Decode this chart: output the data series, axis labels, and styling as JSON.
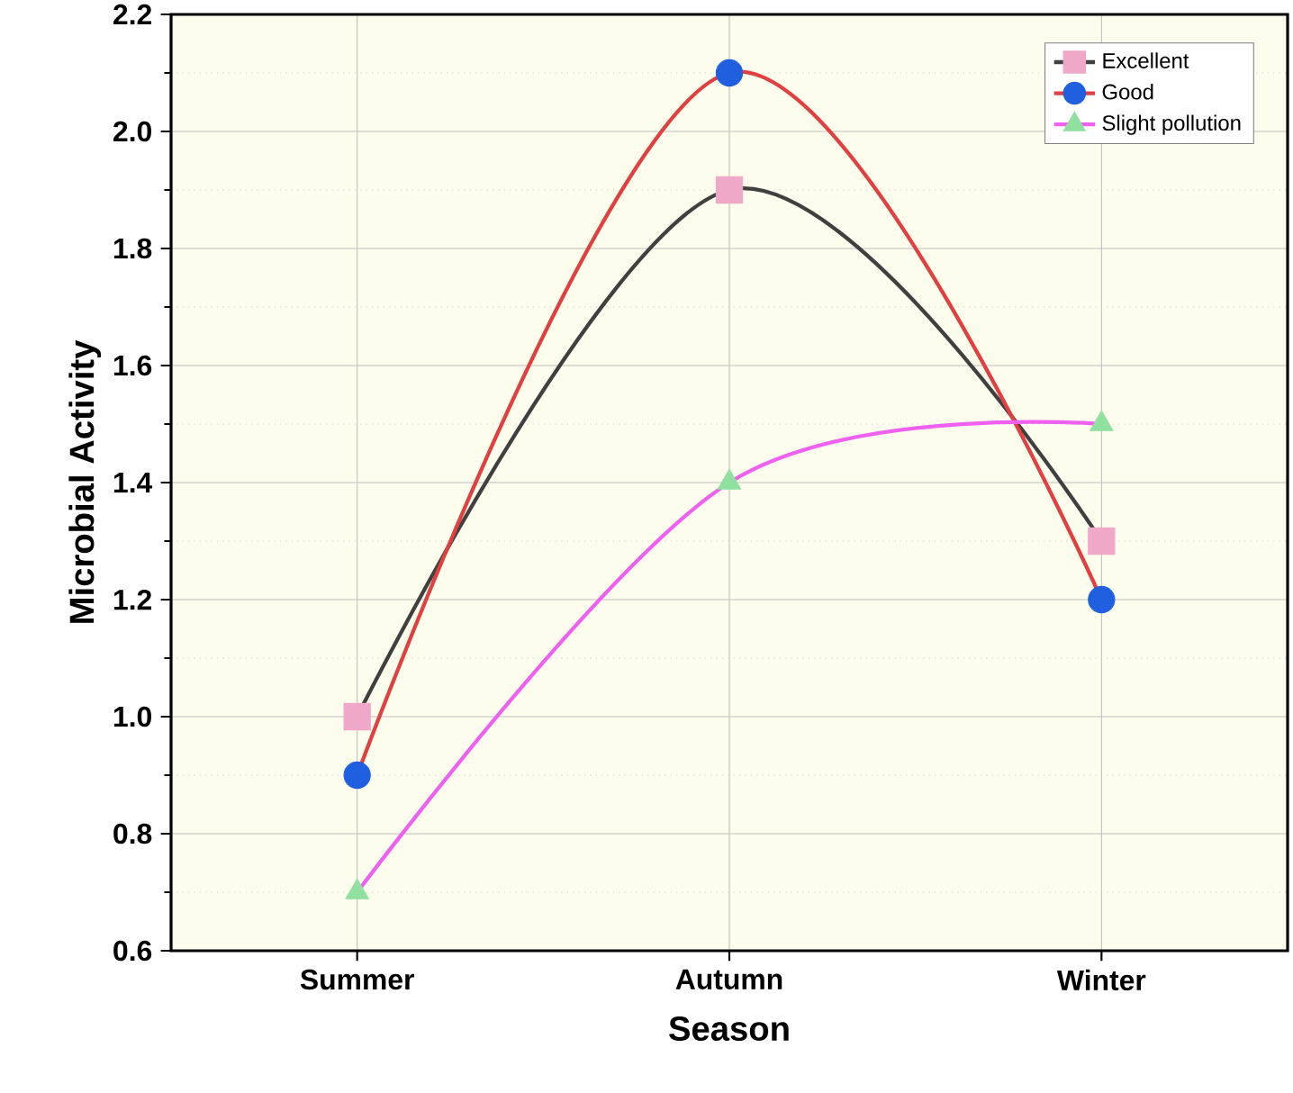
{
  "chart_data": {
    "type": "line",
    "xlabel": "Season",
    "ylabel": "Microbial Activity",
    "categories": [
      "Summer",
      "Autumn",
      "Winter"
    ],
    "ylim": [
      0.6,
      2.2
    ],
    "yticks": [
      0.6,
      0.8,
      {
        "value": 1.0,
        "label": "1.0"
      },
      1.2,
      1.4,
      1.6,
      1.8,
      {
        "value": 2.0,
        "label": "2.0"
      },
      2.2
    ],
    "grid": true,
    "legend": "top right",
    "series": [
      {
        "name": "Excellent",
        "color": "#404040",
        "colors": [
          "#f0a8c8",
          "#f0a8c8",
          "#f0a8c8"
        ],
        "marker": "square",
        "values": [
          1.0,
          1.9,
          1.3
        ]
      },
      {
        "name": "Good",
        "color": "#e04040",
        "colors": [
          "#2060e0",
          "#2060e0",
          "#2060e0"
        ],
        "marker": "circle",
        "values": [
          0.9,
          2.1,
          1.2
        ]
      },
      {
        "name": "Slight pollution",
        "color": "#f060f0",
        "colors": [
          "#90e0a0",
          "#90e0a0",
          "#90e0a0"
        ],
        "marker": "triangle",
        "values": [
          0.7,
          1.4,
          1.5
        ]
      }
    ]
  }
}
